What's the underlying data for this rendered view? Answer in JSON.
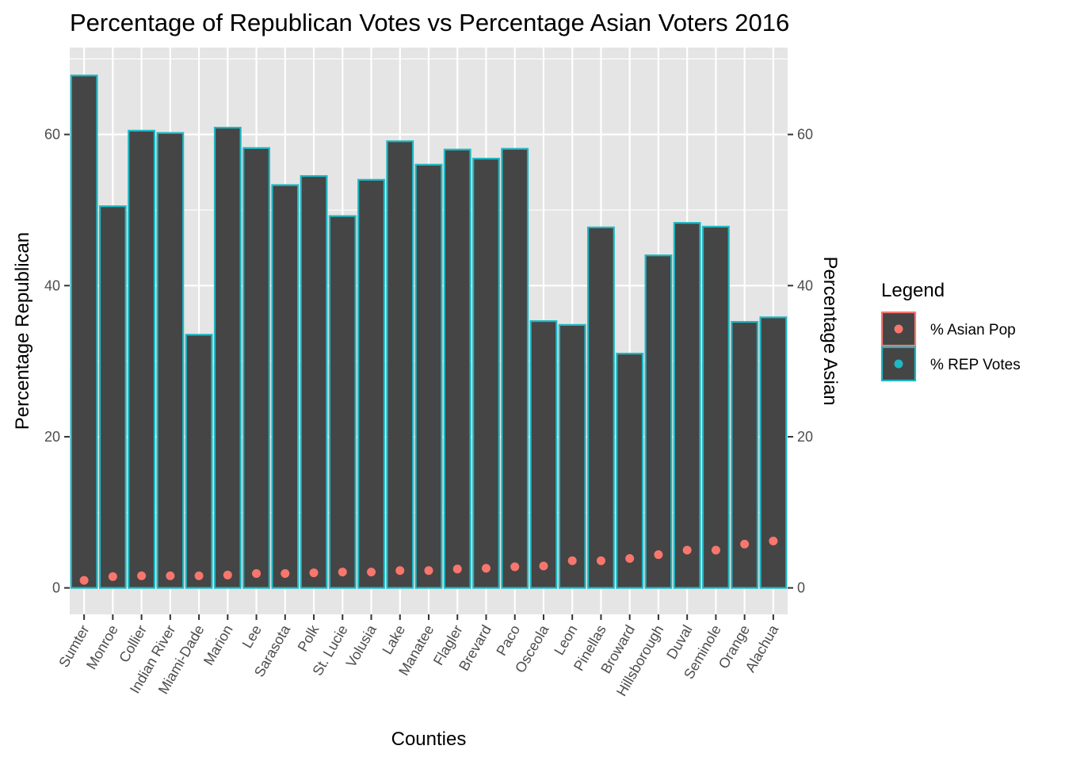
{
  "chart_data": {
    "type": "bar",
    "title": "Percentage of Republican Votes vs Percentage Asian Voters 2016",
    "xlabel": "Counties",
    "ylabel": "Percentage Republican",
    "ylabel_right": "Percentage Asian",
    "ylim": [
      -3.5,
      71.5
    ],
    "y_ticks": [
      0,
      20,
      40,
      60
    ],
    "y_tick_labels": [
      "0",
      "20",
      "40",
      "60"
    ],
    "grid": true,
    "categories": [
      "Sumter",
      "Monroe",
      "Collier",
      "Indian River",
      "Miami-Dade",
      "Marion",
      "Lee",
      "Sarasota",
      "Polk",
      "St. Lucie",
      "Volusia",
      "Lake",
      "Manatee",
      "Flagler",
      "Brevard",
      "Paco",
      "Osceola",
      "Leon",
      "Pinellas",
      "Broward",
      "Hillsborough",
      "Duval",
      "Seminole",
      "Orange",
      "Alachua"
    ],
    "series": [
      {
        "name": "% REP Votes",
        "kind": "bar",
        "fill": "#454545",
        "color": "#1fb7c2",
        "values": [
          67.8,
          50.5,
          60.5,
          60.2,
          33.5,
          60.9,
          58.2,
          53.3,
          54.5,
          49.2,
          54.0,
          59.1,
          56.0,
          58.0,
          56.8,
          58.1,
          35.3,
          34.8,
          47.7,
          31.0,
          44.0,
          48.3,
          47.8,
          35.2,
          35.8
        ]
      },
      {
        "name": "% Asian Pop",
        "kind": "point",
        "color": "#f8766d",
        "values": [
          1.0,
          1.5,
          1.6,
          1.6,
          1.6,
          1.7,
          1.9,
          1.9,
          2.0,
          2.1,
          2.1,
          2.3,
          2.3,
          2.5,
          2.6,
          2.8,
          2.9,
          3.6,
          3.6,
          3.9,
          4.4,
          5.0,
          5.0,
          5.8,
          6.2
        ]
      }
    ],
    "legend": {
      "title": "Legend",
      "position": "right",
      "entries": [
        {
          "label": "% Asian Pop",
          "border_color": "#f8766d",
          "dot_color": "#f8766d"
        },
        {
          "label": "% REP Votes",
          "border_color": "#1fb7c2",
          "dot_color": "#1fb7c2"
        }
      ]
    },
    "panel_background": "#e5e5e5",
    "grid_color": "#ffffff"
  }
}
